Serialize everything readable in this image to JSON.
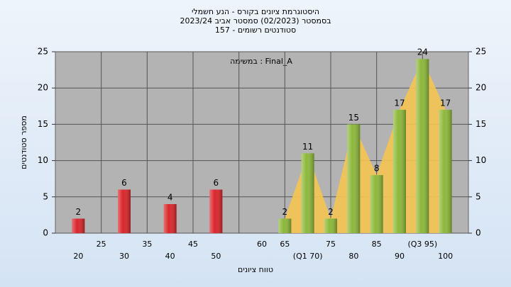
{
  "chart_data": {
    "type": "bar",
    "title": "היסטוגרמת ציונים בקורס - הנע חשמלי",
    "subtitle": [
      "בסמסטר  (02/2023)  סמסטר אביב 2023/24",
      "סטודנטים רשומים - 157"
    ],
    "annotation": "במשימה : Final_A",
    "x_label": "טווח ציונים",
    "y_label": "מספר סטודנטים",
    "categories": [
      "20",
      "25",
      "30",
      "35",
      "40",
      "45",
      "50",
      null,
      "60",
      "65",
      "(Q1 70)",
      "75",
      "80",
      "85",
      "90",
      "(Q3 95)",
      "100"
    ],
    "values": [
      2,
      null,
      6,
      null,
      4,
      null,
      6,
      null,
      null,
      2,
      11,
      2,
      15,
      8,
      17,
      24,
      17
    ],
    "colors": [
      "#d9262b",
      null,
      "#d9262b",
      null,
      "#d9262b",
      null,
      "#d9262b",
      null,
      null,
      "#8db83a",
      "#8db83a",
      "#8db83a",
      "#8db83a",
      "#8db83a",
      "#8db83a",
      "#8db83a",
      "#8db83a"
    ],
    "area_color": "#f5c452",
    "ylim": [
      0,
      25
    ],
    "yticks": [
      0,
      5,
      10,
      15,
      20,
      25
    ],
    "y2lim": [
      0,
      25
    ],
    "y2ticks": [
      0,
      5,
      10,
      15,
      20,
      25
    ],
    "grid": true
  }
}
